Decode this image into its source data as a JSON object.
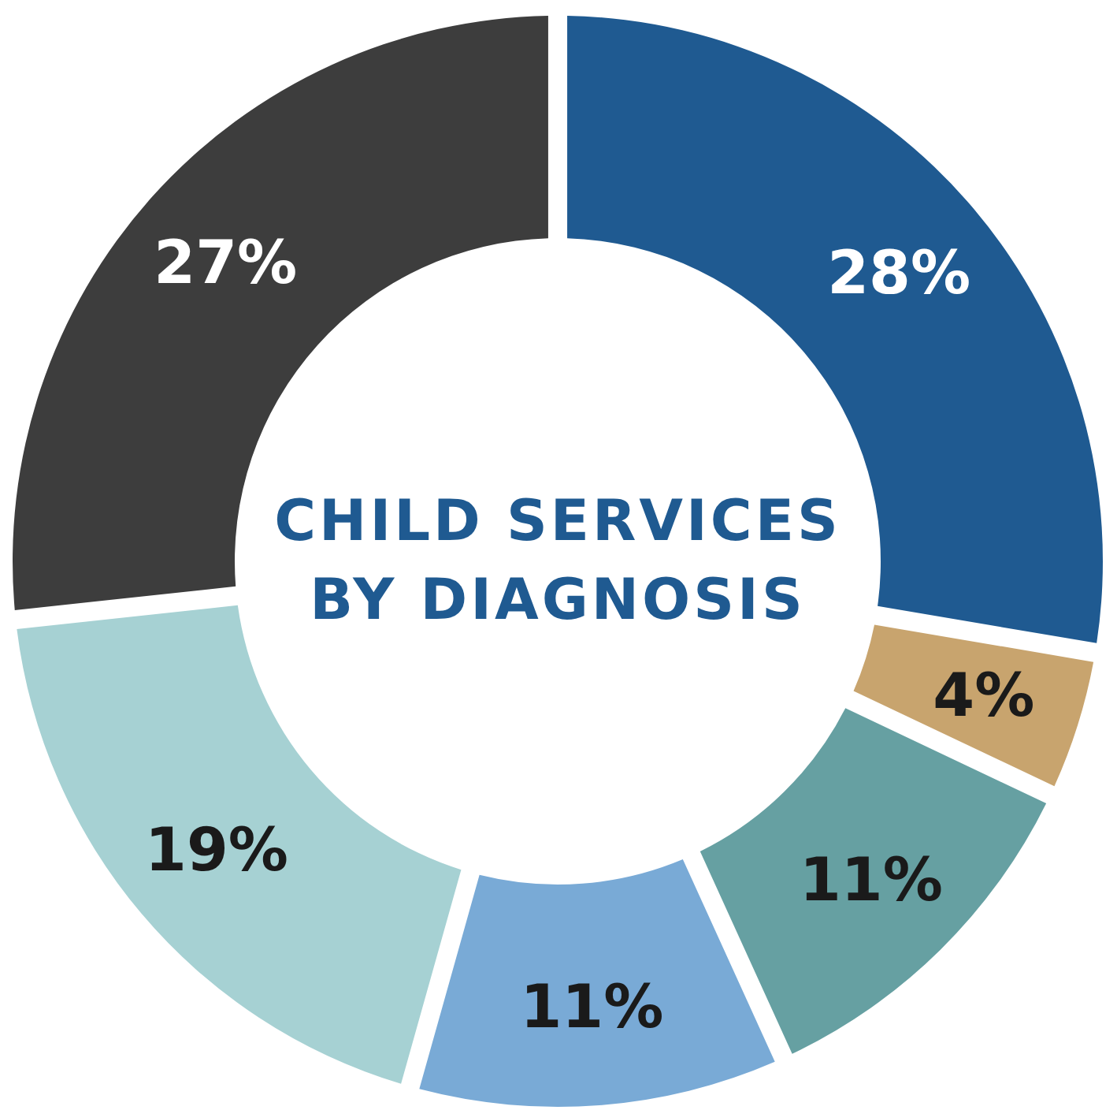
{
  "chart_data": {
    "type": "donut",
    "title": "CHILD SERVICES BY DIAGNOSIS",
    "categories": [
      null,
      null,
      null,
      null,
      null,
      null
    ],
    "values": [
      28,
      4,
      11,
      11,
      19,
      27
    ],
    "colors": [
      "#1f5a91",
      "#c8a46e",
      "#66a0a2",
      "#79aad6",
      "#a6d1d3",
      "#3d3d3d"
    ],
    "value_labels": [
      "28%",
      "4%",
      "11%",
      "11%",
      "19%",
      "27%"
    ]
  }
}
